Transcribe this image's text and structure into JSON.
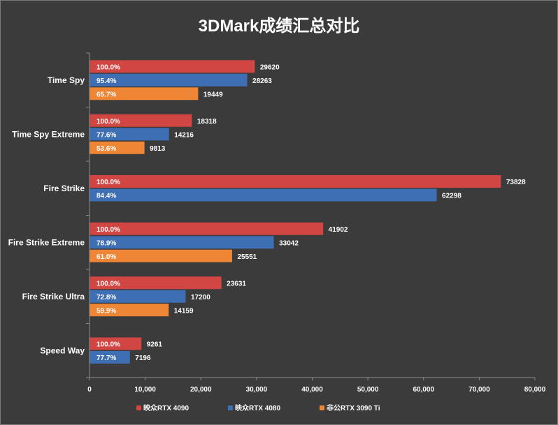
{
  "chart_data": {
    "type": "bar",
    "orientation": "horizontal",
    "title": "3DMark成绩汇总对比",
    "categories": [
      "Time Spy",
      "Time Spy Extreme",
      "Fire Strike",
      "Fire Strike Extreme",
      "Fire Strike Ultra",
      "Speed Way"
    ],
    "series": [
      {
        "name": "映众RTX 4090",
        "color": "#d14543",
        "values": [
          29620,
          18318,
          73828,
          41902,
          23631,
          9261
        ],
        "percent_labels": [
          "100.0%",
          "100.0%",
          "100.0%",
          "100.0%",
          "100.0%",
          "100.0%"
        ]
      },
      {
        "name": "映众RTX 4080",
        "color": "#3e6eb4",
        "values": [
          28263,
          14216,
          62298,
          33042,
          17200,
          7196
        ],
        "percent_labels": [
          "95.4%",
          "77.6%",
          "84.4%",
          "78.9%",
          "72.8%",
          "77.7%"
        ]
      },
      {
        "name": "非公RTX 3090 Ti",
        "color": "#ef8635",
        "values": [
          19449,
          9813,
          null,
          25551,
          14159,
          null
        ],
        "percent_labels": [
          "65.7%",
          "53.6%",
          null,
          "61.0%",
          "59.9%",
          null
        ]
      }
    ],
    "xlim": [
      0,
      80000
    ],
    "x_ticks": [
      0,
      10000,
      20000,
      30000,
      40000,
      50000,
      60000,
      70000,
      80000
    ],
    "x_tick_labels": [
      "0",
      "10,000",
      "20,000",
      "30,000",
      "40,000",
      "50,000",
      "60,000",
      "70,000",
      "80,000"
    ],
    "grid": false,
    "legend_position": "bottom"
  }
}
